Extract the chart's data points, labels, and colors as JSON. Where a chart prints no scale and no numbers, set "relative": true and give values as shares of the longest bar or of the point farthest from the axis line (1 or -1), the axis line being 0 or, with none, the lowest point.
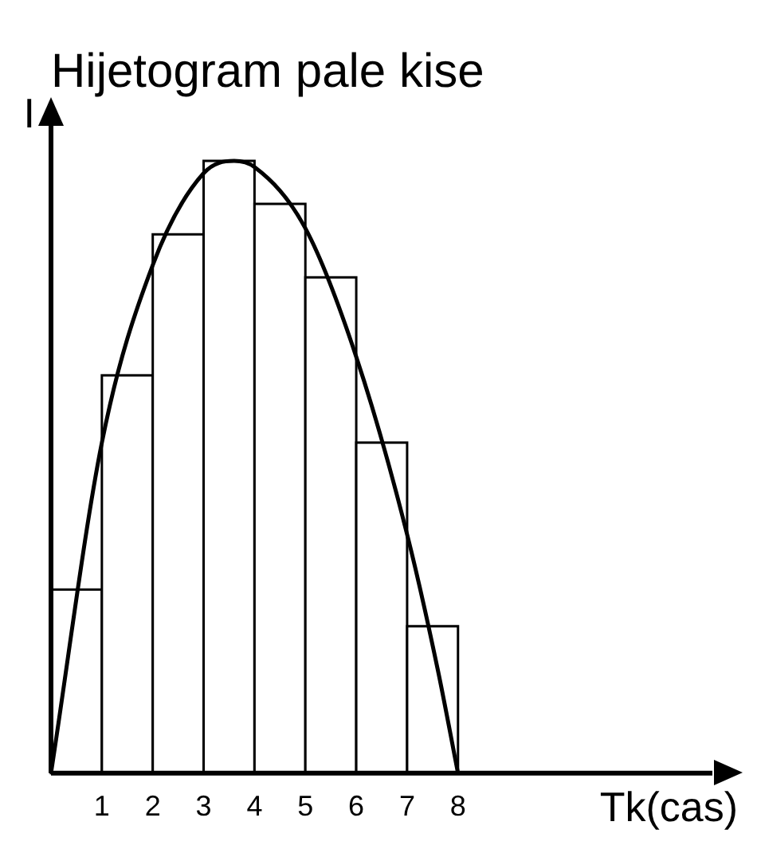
{
  "chart_data": {
    "type": "histogram",
    "title": "Hijetogram pale kise",
    "xlabel": "Tk(cas)",
    "ylabel": "I",
    "relative": true,
    "bins": [
      0,
      1,
      2,
      3,
      4,
      5,
      6,
      7,
      8
    ],
    "values": [
      0.3,
      0.65,
      0.88,
      1,
      0.93,
      0.81,
      0.54,
      0.24
    ],
    "color": "#ffffff",
    "series": [
      {
        "type": "line",
        "color": "#000000",
        "x": [
          0,
          1,
          2,
          3,
          3.6,
          4,
          5,
          6,
          7,
          7.6,
          8
        ],
        "values": [
          0,
          0.54,
          0.83,
          0.98,
          1,
          0.99,
          0.89,
          0.68,
          0.39,
          0.17,
          0
        ]
      }
    ],
    "xlim": [
      0,
      13
    ],
    "xticks": [
      1,
      2,
      3,
      4,
      5,
      6,
      7,
      8
    ],
    "legend": false,
    "grid": false
  }
}
